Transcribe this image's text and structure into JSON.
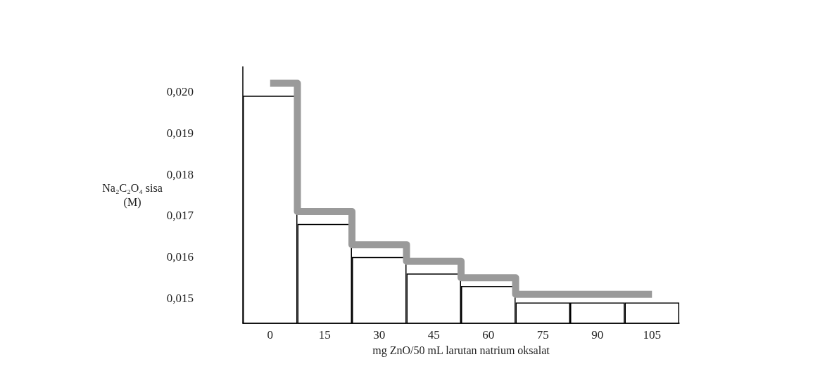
{
  "chart_data": {
    "type": "bar",
    "xlabel": "mg ZnO/50 mL larutan natrium oksalat",
    "ylabel": "Na₂C₂O₄ sisa (M)",
    "categories": [
      "0",
      "15",
      "30",
      "45",
      "60",
      "75",
      "90",
      "105"
    ],
    "series": [
      {
        "color": "#ffffff",
        "values": [
          0.0199,
          0.0168,
          0.016,
          0.0156,
          0.0153,
          0.0149,
          0.0149,
          0.0149
        ]
      },
      {
        "type": "step",
        "color": "#9a9a9a",
        "values": [
          0.0202,
          0.0171,
          0.0163,
          0.0159,
          0.0155,
          0.0151,
          0.0151,
          0.0151
        ]
      }
    ],
    "ylim": [
      0.0144,
      0.0206
    ],
    "yticks": [
      {
        "value": 0.015,
        "label": "0,015"
      },
      {
        "value": 0.016,
        "label": "0,016"
      },
      {
        "value": 0.017,
        "label": "0,017"
      },
      {
        "value": 0.018,
        "label": "0,018"
      },
      {
        "value": 0.019,
        "label": "0,019"
      },
      {
        "value": 0.02,
        "label": "0,020"
      }
    ],
    "grid": false
  }
}
